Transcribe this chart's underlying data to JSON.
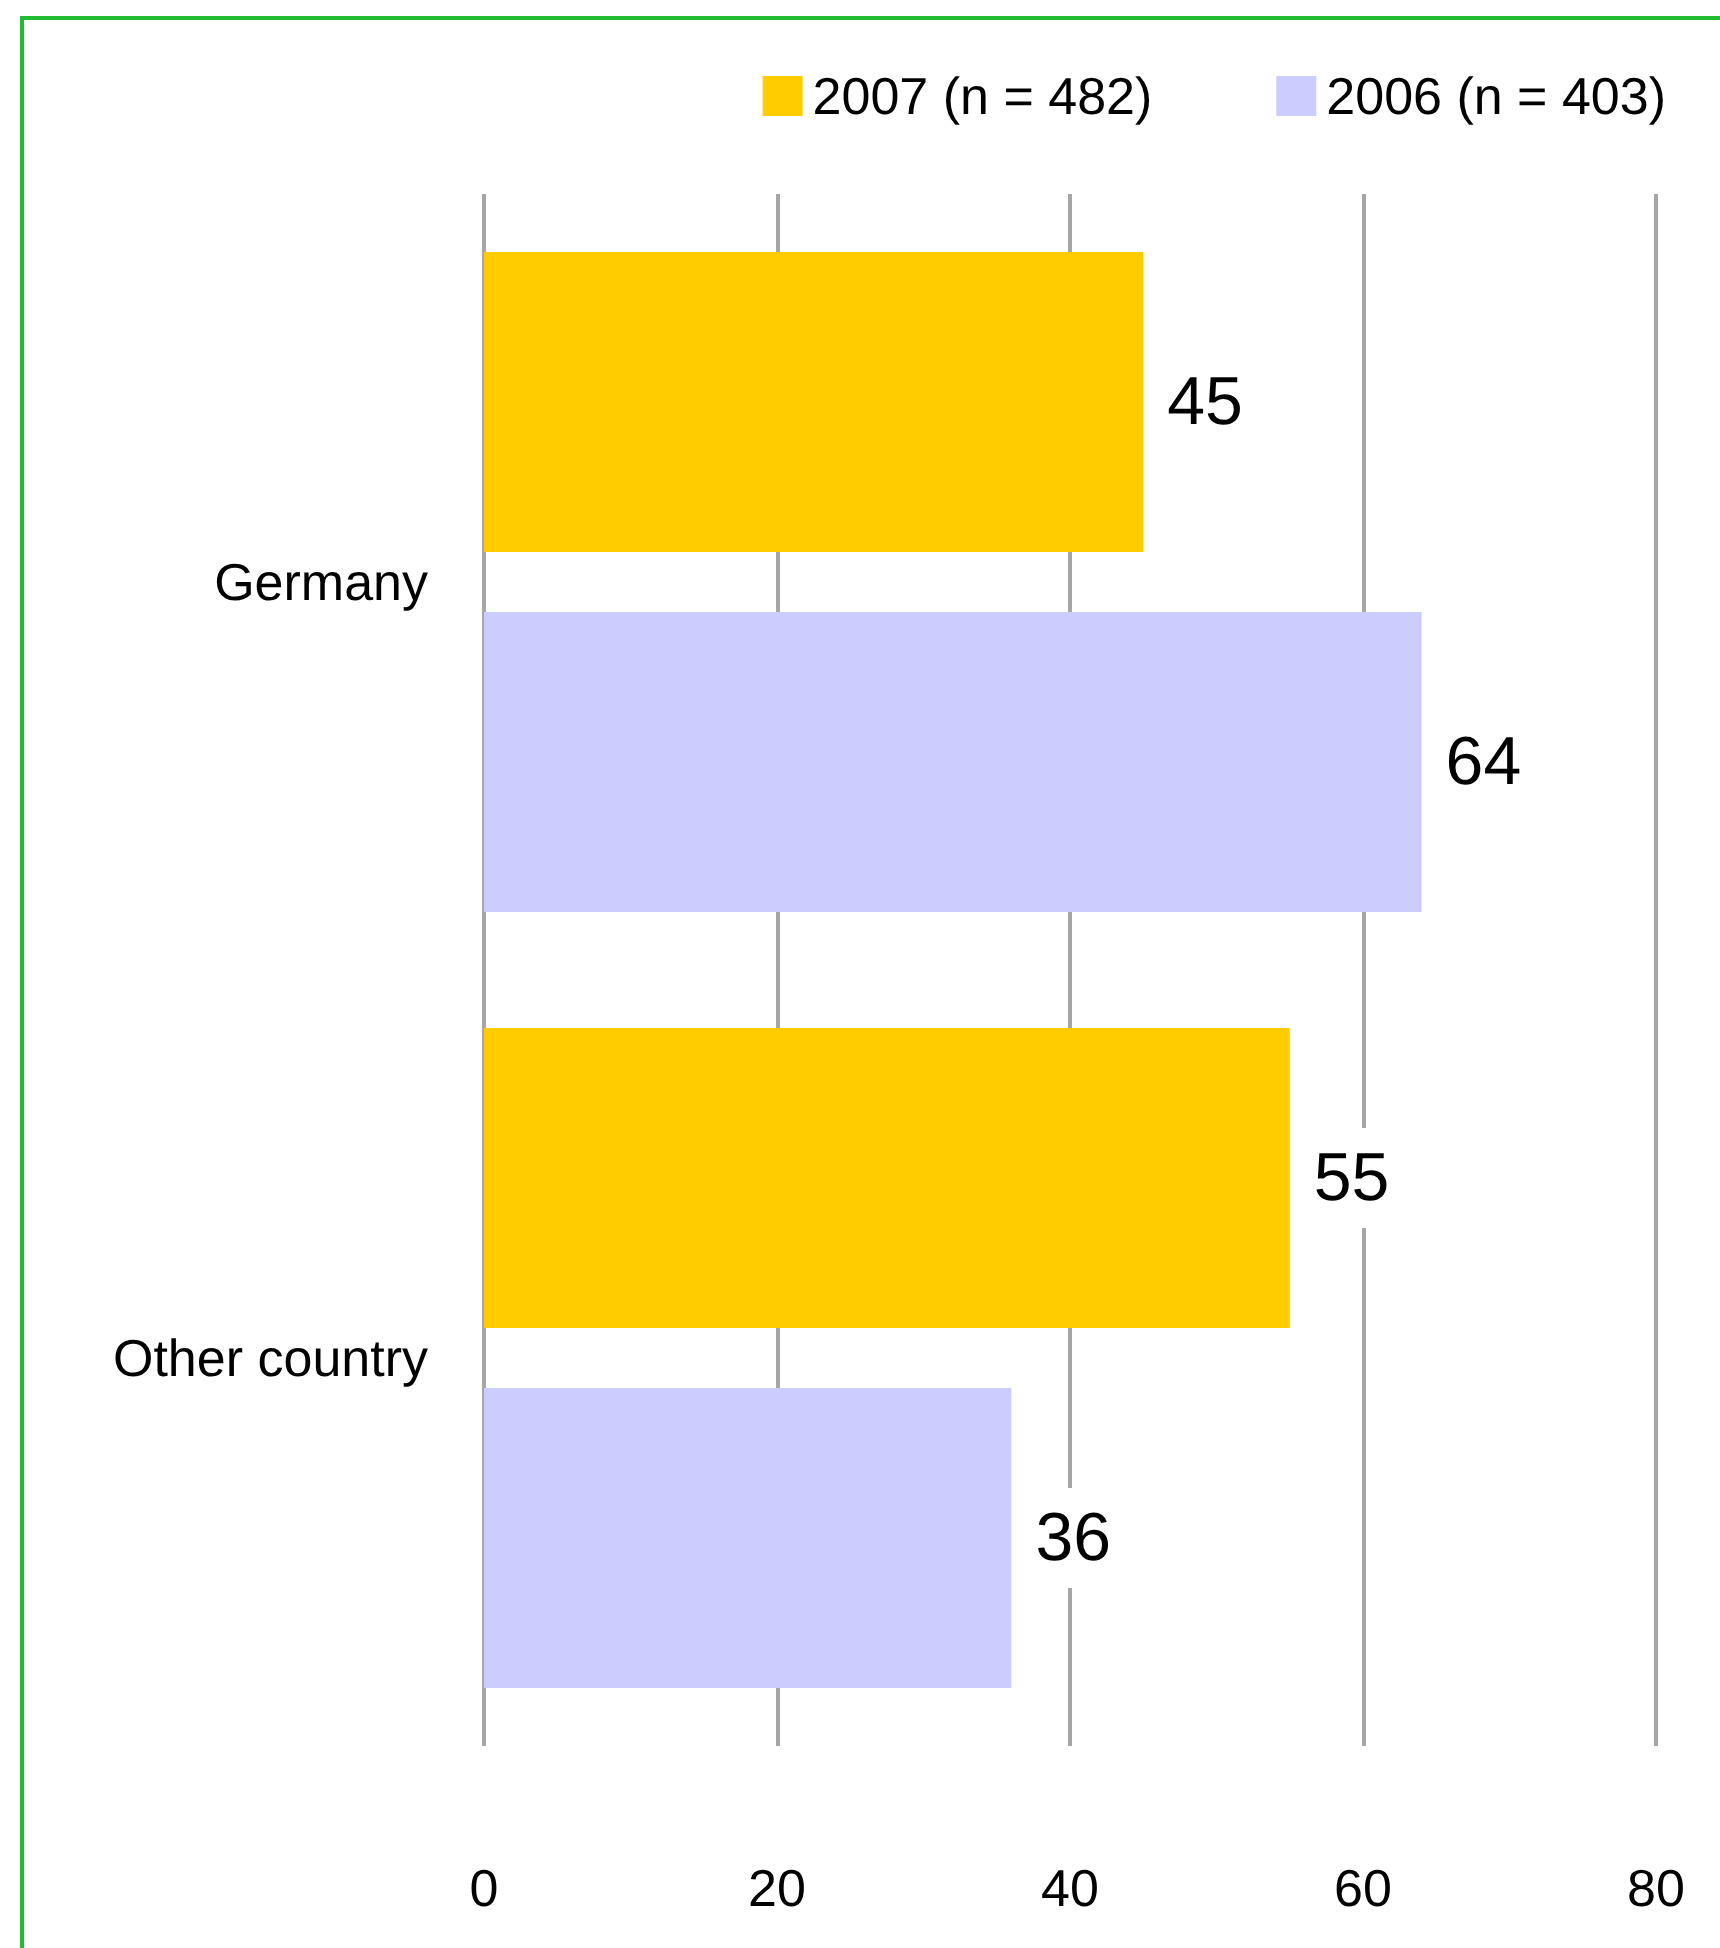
{
  "chart_data": {
    "type": "bar",
    "orientation": "horizontal",
    "categories": [
      "Germany",
      "Other country"
    ],
    "series": [
      {
        "name": "2007 (n = 482)",
        "color": "#ffcc00",
        "values": [
          45,
          55
        ]
      },
      {
        "name": "2006 (n = 403)",
        "color": "#ccccff",
        "values": [
          64,
          36
        ]
      }
    ],
    "xlim": [
      0,
      80
    ],
    "xticks": [
      0,
      20,
      40,
      60,
      80
    ],
    "grid": "x",
    "legend": "top right",
    "data_labels": true
  }
}
